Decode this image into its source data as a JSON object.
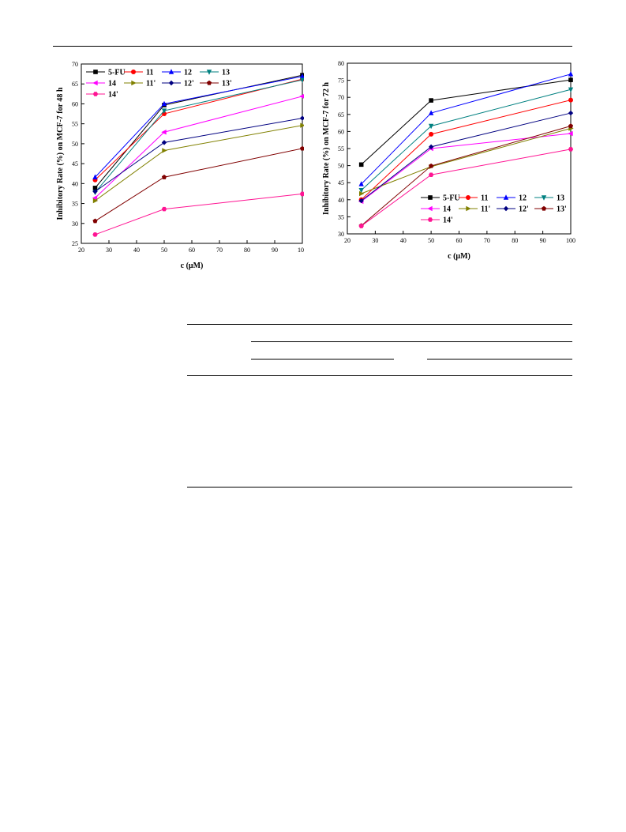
{
  "chart_data": [
    {
      "type": "line",
      "xlabel": "c (μM)",
      "ylabel": "Inhibitory Rate (%) on MCF-7 for 48 h",
      "xlim": [
        20,
        100
      ],
      "ylim": [
        25,
        70
      ],
      "xticks": [
        20,
        30,
        40,
        50,
        60,
        70,
        80,
        90,
        100
      ],
      "yticks": [
        25,
        30,
        35,
        40,
        45,
        50,
        55,
        60,
        65,
        70
      ],
      "x": [
        25,
        50,
        100
      ],
      "legend_position": "top-left",
      "grid": false,
      "series": [
        {
          "name": "5-FU",
          "color": "#000000",
          "marker": "square",
          "values": [
            38.9,
            59.7,
            67.2
          ]
        },
        {
          "name": "11",
          "color": "#ff0000",
          "marker": "circle",
          "values": [
            40.9,
            57.5,
            66.2
          ]
        },
        {
          "name": "12",
          "color": "#0000ff",
          "marker": "triangle-up",
          "values": [
            41.6,
            60.0,
            66.9
          ]
        },
        {
          "name": "13",
          "color": "#008080",
          "marker": "triangle-down",
          "values": [
            37.8,
            58.3,
            66.0
          ]
        },
        {
          "name": "14",
          "color": "#ff00ff",
          "marker": "triangle-left",
          "values": [
            36.4,
            52.9,
            61.9
          ]
        },
        {
          "name": "11'",
          "color": "#808000",
          "marker": "triangle-right",
          "values": [
            35.7,
            48.3,
            54.6
          ]
        },
        {
          "name": "12'",
          "color": "#000080",
          "marker": "diamond",
          "values": [
            38.0,
            50.3,
            56.4
          ]
        },
        {
          "name": "13'",
          "color": "#800000",
          "marker": "pentagon",
          "values": [
            30.6,
            41.6,
            48.8
          ]
        },
        {
          "name": "14'",
          "color": "#ff1493",
          "marker": "hexagon",
          "values": [
            27.2,
            33.6,
            37.4
          ]
        }
      ]
    },
    {
      "type": "line",
      "xlabel": "c (μM)",
      "ylabel": "Inhibitory Rate (%) on MCF-7 for 72 h",
      "xlim": [
        20,
        100
      ],
      "ylim": [
        30,
        80
      ],
      "xticks": [
        20,
        30,
        40,
        50,
        60,
        70,
        80,
        90,
        100
      ],
      "yticks": [
        30,
        35,
        40,
        45,
        50,
        55,
        60,
        65,
        70,
        75,
        80
      ],
      "x": [
        25,
        50,
        100
      ],
      "legend_position": "bottom-right",
      "grid": false,
      "series": [
        {
          "name": "5-FU",
          "color": "#000000",
          "marker": "square",
          "values": [
            50.3,
            69.1,
            75.1
          ]
        },
        {
          "name": "11",
          "color": "#ff0000",
          "marker": "circle",
          "values": [
            40.0,
            59.2,
            69.2
          ]
        },
        {
          "name": "12",
          "color": "#0000ff",
          "marker": "triangle-up",
          "values": [
            44.6,
            65.4,
            76.8
          ]
        },
        {
          "name": "13",
          "color": "#008080",
          "marker": "triangle-down",
          "values": [
            42.8,
            61.6,
            72.3
          ]
        },
        {
          "name": "14",
          "color": "#ff00ff",
          "marker": "triangle-left",
          "values": [
            39.5,
            55.0,
            59.4
          ]
        },
        {
          "name": "11'",
          "color": "#808000",
          "marker": "triangle-right",
          "values": [
            41.8,
            49.7,
            60.9
          ]
        },
        {
          "name": "12'",
          "color": "#000080",
          "marker": "diamond",
          "values": [
            39.7,
            55.5,
            65.4
          ]
        },
        {
          "name": "13'",
          "color": "#800000",
          "marker": "pentagon",
          "values": [
            32.4,
            49.9,
            61.6
          ]
        },
        {
          "name": "14'",
          "color": "#ff1493",
          "marker": "hexagon",
          "values": [
            32.3,
            47.3,
            54.8
          ]
        }
      ]
    }
  ]
}
